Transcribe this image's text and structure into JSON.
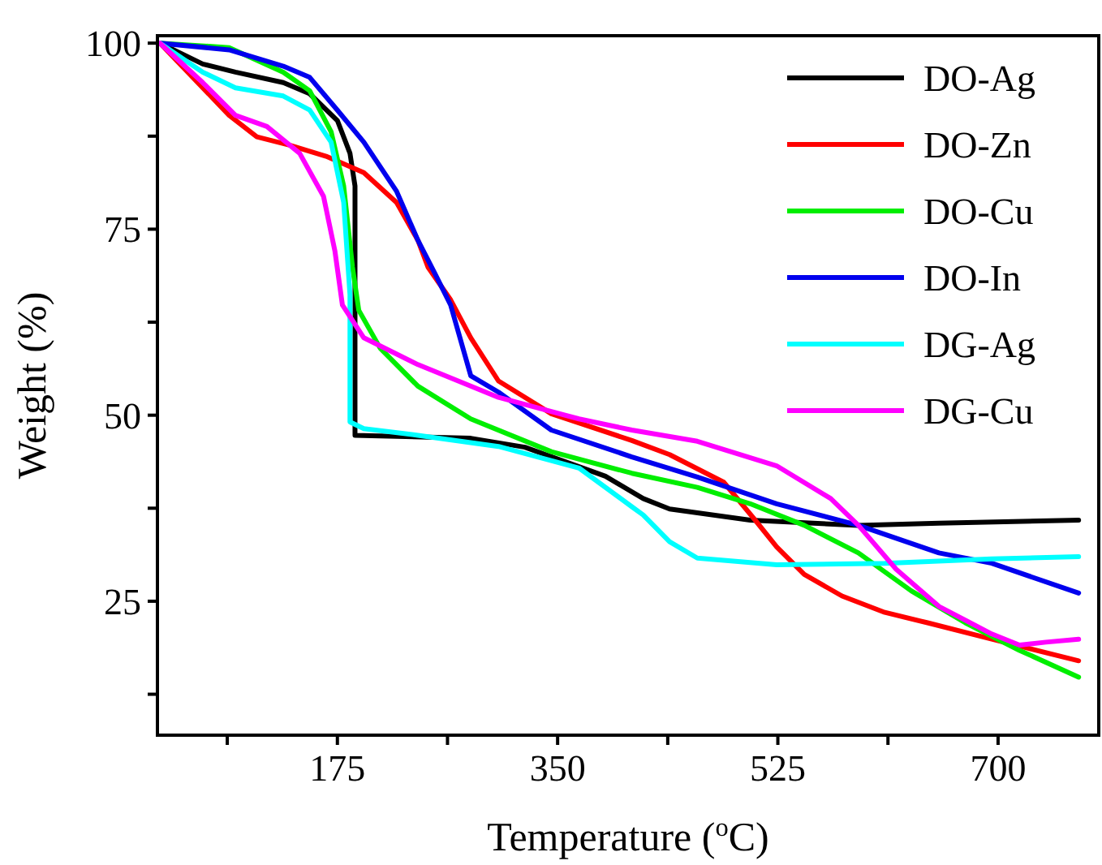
{
  "chart_data": {
    "type": "line",
    "xlabel": "Temperature ($^{o}$C)",
    "ylabel": "Weight (%)",
    "xlim": [
      32,
      780
    ],
    "ylim": [
      7,
      101
    ],
    "xticks": [
      {
        "value": 87.5,
        "label": null
      },
      175,
      {
        "value": 262.5,
        "label": null
      },
      350,
      {
        "value": 437.5,
        "label": null
      },
      525,
      {
        "value": 612.5,
        "label": null
      },
      700
    ],
    "yticks": [
      {
        "value": 12.5,
        "label": null
      },
      25,
      {
        "value": 37.5,
        "label": null
      },
      50,
      {
        "value": 62.5,
        "label": null
      },
      75,
      {
        "value": 87.5,
        "label": null
      },
      100
    ],
    "legend": "top right",
    "grid": false,
    "marker": "none",
    "line_style": "solid",
    "series": [
      {
        "name": "DO-Ag",
        "color": "#000000",
        "x": [
          34,
          68,
          94,
          132,
          153,
          175,
          185,
          189,
          189,
          281,
          324,
          388,
          418,
          439,
          503,
          589,
          653,
          764
        ],
        "values": [
          100,
          97.2,
          96.1,
          94.7,
          93.2,
          89.6,
          85.2,
          80.8,
          47.3,
          46.9,
          45.7,
          41.8,
          38.8,
          37.4,
          35.9,
          35.2,
          35.5,
          35.9
        ]
      },
      {
        "name": "DO-Zn",
        "color": "#ff0000",
        "x": [
          34,
          68,
          89,
          111,
          137,
          166,
          196,
          222,
          239,
          247,
          265,
          281,
          303,
          345,
          409,
          439,
          482,
          507,
          524,
          546,
          576,
          610,
          644,
          695,
          764
        ],
        "values": [
          100,
          94,
          90.3,
          87.4,
          86.3,
          84.8,
          82.6,
          78.6,
          73.5,
          69.9,
          65.5,
          60.4,
          54.6,
          50.2,
          46.6,
          44.7,
          41,
          35.9,
          32.3,
          28.6,
          25.7,
          23.5,
          22.1,
          19.9,
          17
        ]
      },
      {
        "name": "DO-Cu",
        "color": "#00ee00",
        "x": [
          34,
          89,
          132,
          153,
          170,
          180,
          187,
          192,
          209,
          239,
          281,
          345,
          409,
          461,
          503,
          546,
          589,
          631,
          674,
          717,
          764
        ],
        "values": [
          100,
          99.4,
          96.1,
          93.6,
          88.1,
          80.8,
          69.9,
          64.1,
          59,
          53.9,
          49.5,
          45.1,
          42.2,
          40.3,
          38.1,
          35.2,
          31.5,
          26.4,
          22.1,
          18.4,
          14.8
        ]
      },
      {
        "name": "DO-In",
        "color": "#0000ee",
        "x": [
          34,
          89,
          132,
          153,
          175,
          196,
          222,
          239,
          252,
          265,
          281,
          303,
          345,
          409,
          461,
          524,
          589,
          653,
          695,
          764
        ],
        "values": [
          100,
          99.1,
          96.9,
          95.4,
          91,
          86.7,
          80.1,
          73.5,
          69.2,
          64.8,
          55.3,
          53.1,
          48,
          44.4,
          41.7,
          38.1,
          35.2,
          31.5,
          30.1,
          26.1
        ]
      },
      {
        "name": "DG-Ag",
        "color": "#00ffff",
        "x": [
          34,
          68,
          94,
          132,
          153,
          170,
          180,
          185,
          185,
          196,
          239,
          303,
          367,
          409,
          418,
          439,
          461,
          524,
          610,
          695,
          764
        ],
        "values": [
          100,
          96.1,
          94,
          92.9,
          91,
          86.7,
          78.6,
          66.2,
          49.1,
          48.2,
          47.3,
          45.8,
          42.9,
          37.7,
          36.6,
          33,
          30.8,
          29.9,
          30.1,
          30.7,
          31
        ]
      },
      {
        "name": "DG-Cu",
        "color": "#ff00ff",
        "x": [
          34,
          68,
          94,
          119,
          145,
          164,
          173,
          179,
          196,
          239,
          303,
          367,
          409,
          461,
          524,
          567,
          589,
          619,
          653,
          695,
          717,
          738,
          764
        ],
        "values": [
          100,
          94.7,
          90.3,
          88.8,
          85.2,
          79.4,
          72.1,
          64.8,
          60.4,
          56.8,
          52.4,
          49.5,
          48,
          46.5,
          43.2,
          38.8,
          35.2,
          29.3,
          24.3,
          20.6,
          19.1,
          19.5,
          19.9
        ]
      }
    ]
  }
}
